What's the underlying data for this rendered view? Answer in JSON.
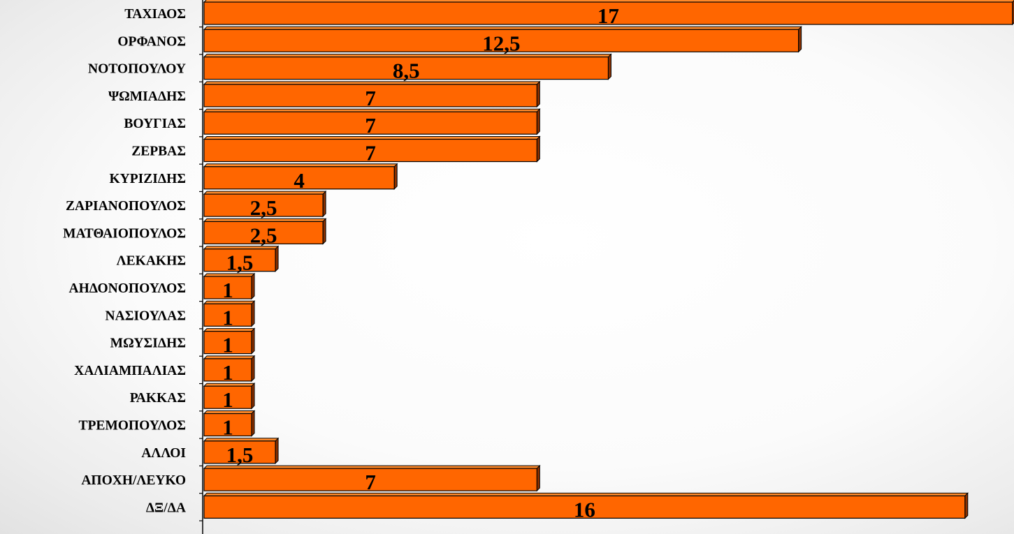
{
  "chart_data": {
    "type": "bar",
    "orientation": "horizontal",
    "style": "3d",
    "categories": [
      "ΤΑΧΙΑΟΣ",
      "ΟΡΦΑΝΟΣ",
      "ΝΟΤΟΠΟΥΛΟΥ",
      "ΨΩΜΙΑΔΗΣ",
      "ΒΟΥΓΙΑΣ",
      "ΖΕΡΒΑΣ",
      "ΚΥΡΙΖΙΔΗΣ",
      "ΖΑΡΙΑΝΟΠΟΥΛΟΣ",
      "ΜΑΤΘΑΙΟΠΟΥΛΟΣ",
      "ΛΕΚΑΚΗΣ",
      "ΑΗΔΟΝΟΠΟΥΛΟΣ",
      "ΝΑΣΙΟΥΛΑΣ",
      "ΜΩΥΣΙΔΗΣ",
      "ΧΑΛΙΑΜΠΑΛΙΑΣ",
      "ΡΑΚΚΑΣ",
      "ΤΡΕΜΟΠΟΥΛΟΣ",
      "ΑΛΛΟΙ",
      "ΑΠΟΧΗ/ΛΕΥΚΟ",
      "ΔΞ/ΔΑ"
    ],
    "values": [
      17,
      12.5,
      8.5,
      7,
      7,
      7,
      4,
      2.5,
      2.5,
      1.5,
      1,
      1,
      1,
      1,
      1,
      1,
      1.5,
      7,
      16
    ],
    "data_labels": [
      "17",
      "12,5",
      "8,5",
      "7",
      "7",
      "7",
      "4",
      "2,5",
      "2,5",
      "1,5",
      "1",
      "1",
      "1",
      "1",
      "1",
      "1",
      "1,5",
      "7",
      "16"
    ],
    "title": "",
    "xlabel": "",
    "ylabel": "",
    "xlim": [
      0,
      17
    ],
    "grid": false,
    "legend": "none",
    "colors": {
      "bar_front": "#ff6600",
      "bar_top": "#ff8a2a",
      "bar_side": "#8a3000",
      "bar_edge": "#000000"
    }
  }
}
